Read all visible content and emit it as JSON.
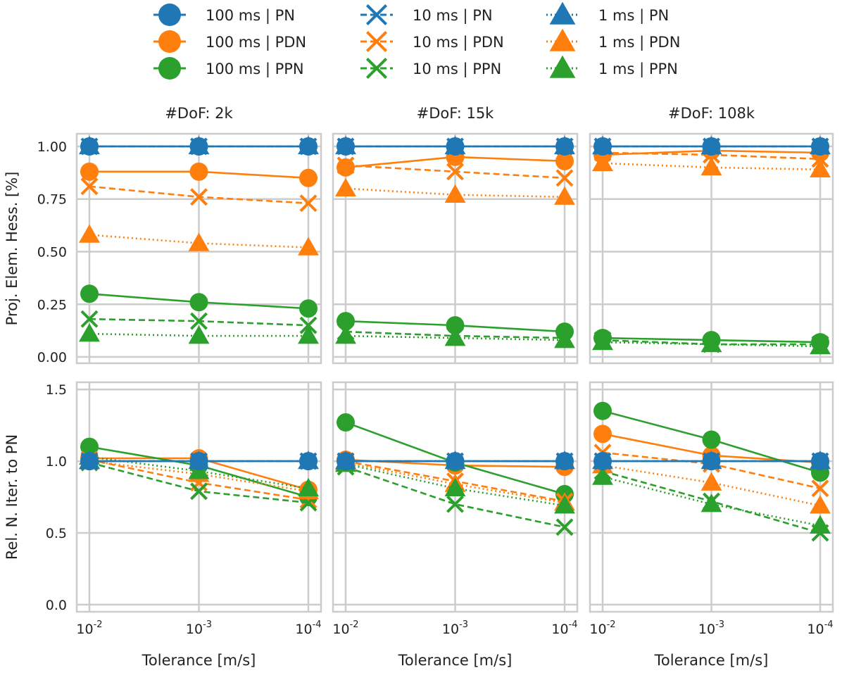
{
  "colors": {
    "PN": "#1f77b4",
    "PDN": "#ff7f0e",
    "PPN": "#2ca02c",
    "grid": "#cccccc"
  },
  "legend": {
    "entries": [
      {
        "label": "100 ms | PN",
        "method": "PN",
        "time": "100 ms"
      },
      {
        "label": "100 ms | PDN",
        "method": "PDN",
        "time": "100 ms"
      },
      {
        "label": "100 ms | PPN",
        "method": "PPN",
        "time": "100 ms"
      },
      {
        "label": "10 ms | PN",
        "method": "PN",
        "time": "10 ms"
      },
      {
        "label": "10 ms | PDN",
        "method": "PDN",
        "time": "10 ms"
      },
      {
        "label": "10 ms | PPN",
        "method": "PPN",
        "time": "10 ms"
      },
      {
        "label": "1 ms | PN",
        "method": "PN",
        "time": "1 ms"
      },
      {
        "label": "1 ms | PDN",
        "method": "PDN",
        "time": "1 ms"
      },
      {
        "label": "1 ms | PPN",
        "method": "PPN",
        "time": "1 ms"
      }
    ]
  },
  "chart_data": {
    "type": "line",
    "layout": "2x3 grid",
    "xlabel": "Tolerance [m/s]",
    "x": [
      "10^-2",
      "10^-3",
      "10^-4"
    ],
    "x_ticks": [
      {
        "base": "10",
        "exp": "-2"
      },
      {
        "base": "10",
        "exp": "-3"
      },
      {
        "base": "10",
        "exp": "-4"
      }
    ],
    "column_titles": [
      "#DoF: 2k",
      "#DoF: 15k",
      "#DoF: 108k"
    ],
    "rows": [
      {
        "ylabel": "Proj. Elem. Hess. [%]",
        "ylim": [
          -0.03,
          1.06
        ],
        "yticks": [
          0.0,
          0.25,
          0.5,
          0.75,
          1.0
        ],
        "ytick_labels": [
          "0.00",
          "0.25",
          "0.50",
          "0.75",
          "1.00"
        ],
        "panels": [
          {
            "title": "#DoF: 2k",
            "series": [
              {
                "name": "100 ms | PN",
                "values": [
                  1.0,
                  1.0,
                  1.0
                ]
              },
              {
                "name": "100 ms | PDN",
                "values": [
                  0.88,
                  0.88,
                  0.85
                ]
              },
              {
                "name": "100 ms | PPN",
                "values": [
                  0.3,
                  0.26,
                  0.23
                ]
              },
              {
                "name": "10 ms | PN",
                "values": [
                  1.0,
                  1.0,
                  1.0
                ]
              },
              {
                "name": "10 ms | PDN",
                "values": [
                  0.81,
                  0.76,
                  0.73
                ]
              },
              {
                "name": "10 ms | PPN",
                "values": [
                  0.18,
                  0.17,
                  0.15
                ]
              },
              {
                "name": "1 ms | PN",
                "values": [
                  1.0,
                  1.0,
                  1.0
                ]
              },
              {
                "name": "1 ms | PDN",
                "values": [
                  0.58,
                  0.54,
                  0.52
                ]
              },
              {
                "name": "1 ms | PPN",
                "values": [
                  0.11,
                  0.1,
                  0.1
                ]
              }
            ]
          },
          {
            "title": "#DoF: 15k",
            "series": [
              {
                "name": "100 ms | PN",
                "values": [
                  1.0,
                  1.0,
                  1.0
                ]
              },
              {
                "name": "100 ms | PDN",
                "values": [
                  0.9,
                  0.95,
                  0.93
                ]
              },
              {
                "name": "100 ms | PPN",
                "values": [
                  0.17,
                  0.15,
                  0.12
                ]
              },
              {
                "name": "10 ms | PN",
                "values": [
                  1.0,
                  1.0,
                  1.0
                ]
              },
              {
                "name": "10 ms | PDN",
                "values": [
                  0.91,
                  0.88,
                  0.85
                ]
              },
              {
                "name": "10 ms | PPN",
                "values": [
                  0.12,
                  0.1,
                  0.09
                ]
              },
              {
                "name": "1 ms | PN",
                "values": [
                  1.0,
                  1.0,
                  1.0
                ]
              },
              {
                "name": "1 ms | PDN",
                "values": [
                  0.8,
                  0.77,
                  0.76
                ]
              },
              {
                "name": "1 ms | PPN",
                "values": [
                  0.1,
                  0.09,
                  0.08
                ]
              }
            ]
          },
          {
            "title": "#DoF: 108k",
            "series": [
              {
                "name": "100 ms | PN",
                "values": [
                  1.0,
                  1.0,
                  1.0
                ]
              },
              {
                "name": "100 ms | PDN",
                "values": [
                  0.96,
                  0.98,
                  0.97
                ]
              },
              {
                "name": "100 ms | PPN",
                "values": [
                  0.09,
                  0.08,
                  0.07
                ]
              },
              {
                "name": "10 ms | PN",
                "values": [
                  1.0,
                  1.0,
                  1.0
                ]
              },
              {
                "name": "10 ms | PDN",
                "values": [
                  0.97,
                  0.96,
                  0.94
                ]
              },
              {
                "name": "10 ms | PPN",
                "values": [
                  0.08,
                  0.06,
                  0.06
                ]
              },
              {
                "name": "1 ms | PN",
                "values": [
                  1.0,
                  1.0,
                  1.0
                ]
              },
              {
                "name": "1 ms | PDN",
                "values": [
                  0.92,
                  0.9,
                  0.89
                ]
              },
              {
                "name": "1 ms | PPN",
                "values": [
                  0.07,
                  0.06,
                  0.05
                ]
              }
            ]
          }
        ]
      },
      {
        "ylabel": "Rel. N. Iter. to PN",
        "ylim": [
          -0.05,
          1.55
        ],
        "yticks": [
          0.0,
          0.5,
          1.0,
          1.5
        ],
        "ytick_labels": [
          "0.0",
          "0.5",
          "1.0",
          "1.5"
        ],
        "panels": [
          {
            "title": "#DoF: 2k",
            "series": [
              {
                "name": "100 ms | PN",
                "values": [
                  1.0,
                  1.0,
                  1.0
                ]
              },
              {
                "name": "100 ms | PDN",
                "values": [
                  1.02,
                  1.02,
                  0.8
                ]
              },
              {
                "name": "100 ms | PPN",
                "values": [
                  1.1,
                  0.97,
                  0.75
                ]
              },
              {
                "name": "10 ms | PN",
                "values": [
                  1.0,
                  1.0,
                  1.0
                ]
              },
              {
                "name": "10 ms | PDN",
                "values": [
                  1.01,
                  0.85,
                  0.73
                ]
              },
              {
                "name": "10 ms | PPN",
                "values": [
                  0.99,
                  0.79,
                  0.71
                ]
              },
              {
                "name": "1 ms | PN",
                "values": [
                  1.0,
                  1.0,
                  1.0
                ]
              },
              {
                "name": "1 ms | PDN",
                "values": [
                  1.0,
                  0.91,
                  0.79
                ]
              },
              {
                "name": "1 ms | PPN",
                "values": [
                  1.03,
                  0.93,
                  0.81
                ]
              }
            ]
          },
          {
            "title": "#DoF: 15k",
            "series": [
              {
                "name": "100 ms | PN",
                "values": [
                  1.0,
                  1.0,
                  1.0
                ]
              },
              {
                "name": "100 ms | PDN",
                "values": [
                  1.01,
                  0.97,
                  0.96
                ]
              },
              {
                "name": "100 ms | PPN",
                "values": [
                  1.27,
                  0.99,
                  0.77
                ]
              },
              {
                "name": "10 ms | PN",
                "values": [
                  1.0,
                  1.0,
                  1.0
                ]
              },
              {
                "name": "10 ms | PDN",
                "values": [
                  1.0,
                  0.86,
                  0.72
                ]
              },
              {
                "name": "10 ms | PPN",
                "values": [
                  0.96,
                  0.7,
                  0.54
                ]
              },
              {
                "name": "1 ms | PN",
                "values": [
                  1.0,
                  1.0,
                  1.0
                ]
              },
              {
                "name": "1 ms | PDN",
                "values": [
                  0.99,
                  0.84,
                  0.71
                ]
              },
              {
                "name": "1 ms | PPN",
                "values": [
                  0.98,
                  0.81,
                  0.69
                ]
              }
            ]
          },
          {
            "title": "#DoF: 108k",
            "series": [
              {
                "name": "100 ms | PN",
                "values": [
                  1.0,
                  1.0,
                  1.0
                ]
              },
              {
                "name": "100 ms | PDN",
                "values": [
                  1.19,
                  1.04,
                  0.99
                ]
              },
              {
                "name": "100 ms | PPN",
                "values": [
                  1.35,
                  1.15,
                  0.92
                ]
              },
              {
                "name": "10 ms | PN",
                "values": [
                  1.0,
                  1.0,
                  1.0
                ]
              },
              {
                "name": "10 ms | PDN",
                "values": [
                  1.06,
                  0.98,
                  0.81
                ]
              },
              {
                "name": "10 ms | PPN",
                "values": [
                  0.93,
                  0.72,
                  0.5
                ]
              },
              {
                "name": "1 ms | PN",
                "values": [
                  1.0,
                  1.0,
                  1.0
                ]
              },
              {
                "name": "1 ms | PDN",
                "values": [
                  0.97,
                  0.85,
                  0.69
                ]
              },
              {
                "name": "1 ms | PPN",
                "values": [
                  0.89,
                  0.7,
                  0.55
                ]
              }
            ]
          }
        ]
      }
    ]
  }
}
